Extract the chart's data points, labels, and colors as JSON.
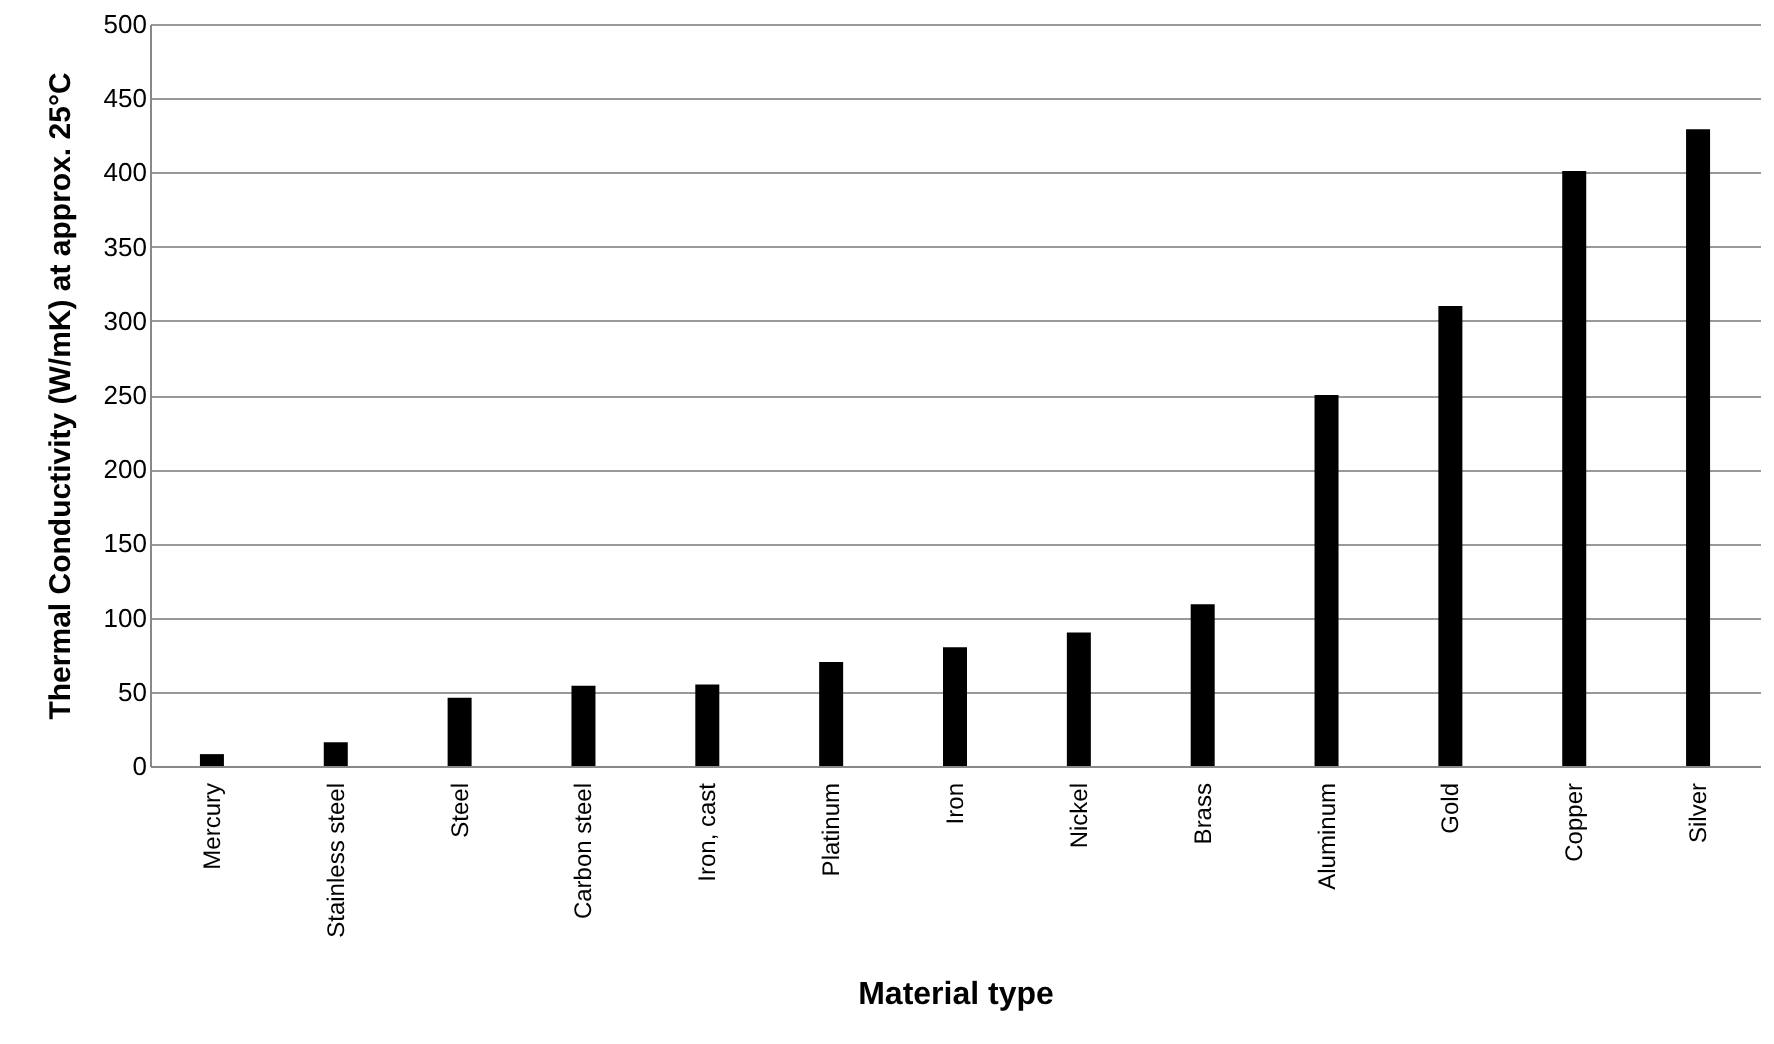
{
  "chart_data": {
    "type": "bar",
    "xlabel": "Material type",
    "ylabel": "Thermal Conductivity (W/mK) at approx. 25°C",
    "categories": [
      "Mercury",
      "Stainless steel",
      "Steel",
      "Carbon steel",
      "Iron, cast",
      "Platinum",
      "Iron",
      "Nickel",
      "Brass",
      "Aluminum",
      "Gold",
      "Copper",
      "Silver"
    ],
    "values": [
      8,
      16,
      46,
      54,
      55,
      70,
      80,
      90,
      109,
      250,
      310,
      401,
      429
    ],
    "color": "#000000",
    "ylim": [
      0,
      500
    ],
    "yticks": [
      0,
      50,
      100,
      150,
      200,
      250,
      300,
      350,
      400,
      450,
      500
    ],
    "grid": "y"
  }
}
